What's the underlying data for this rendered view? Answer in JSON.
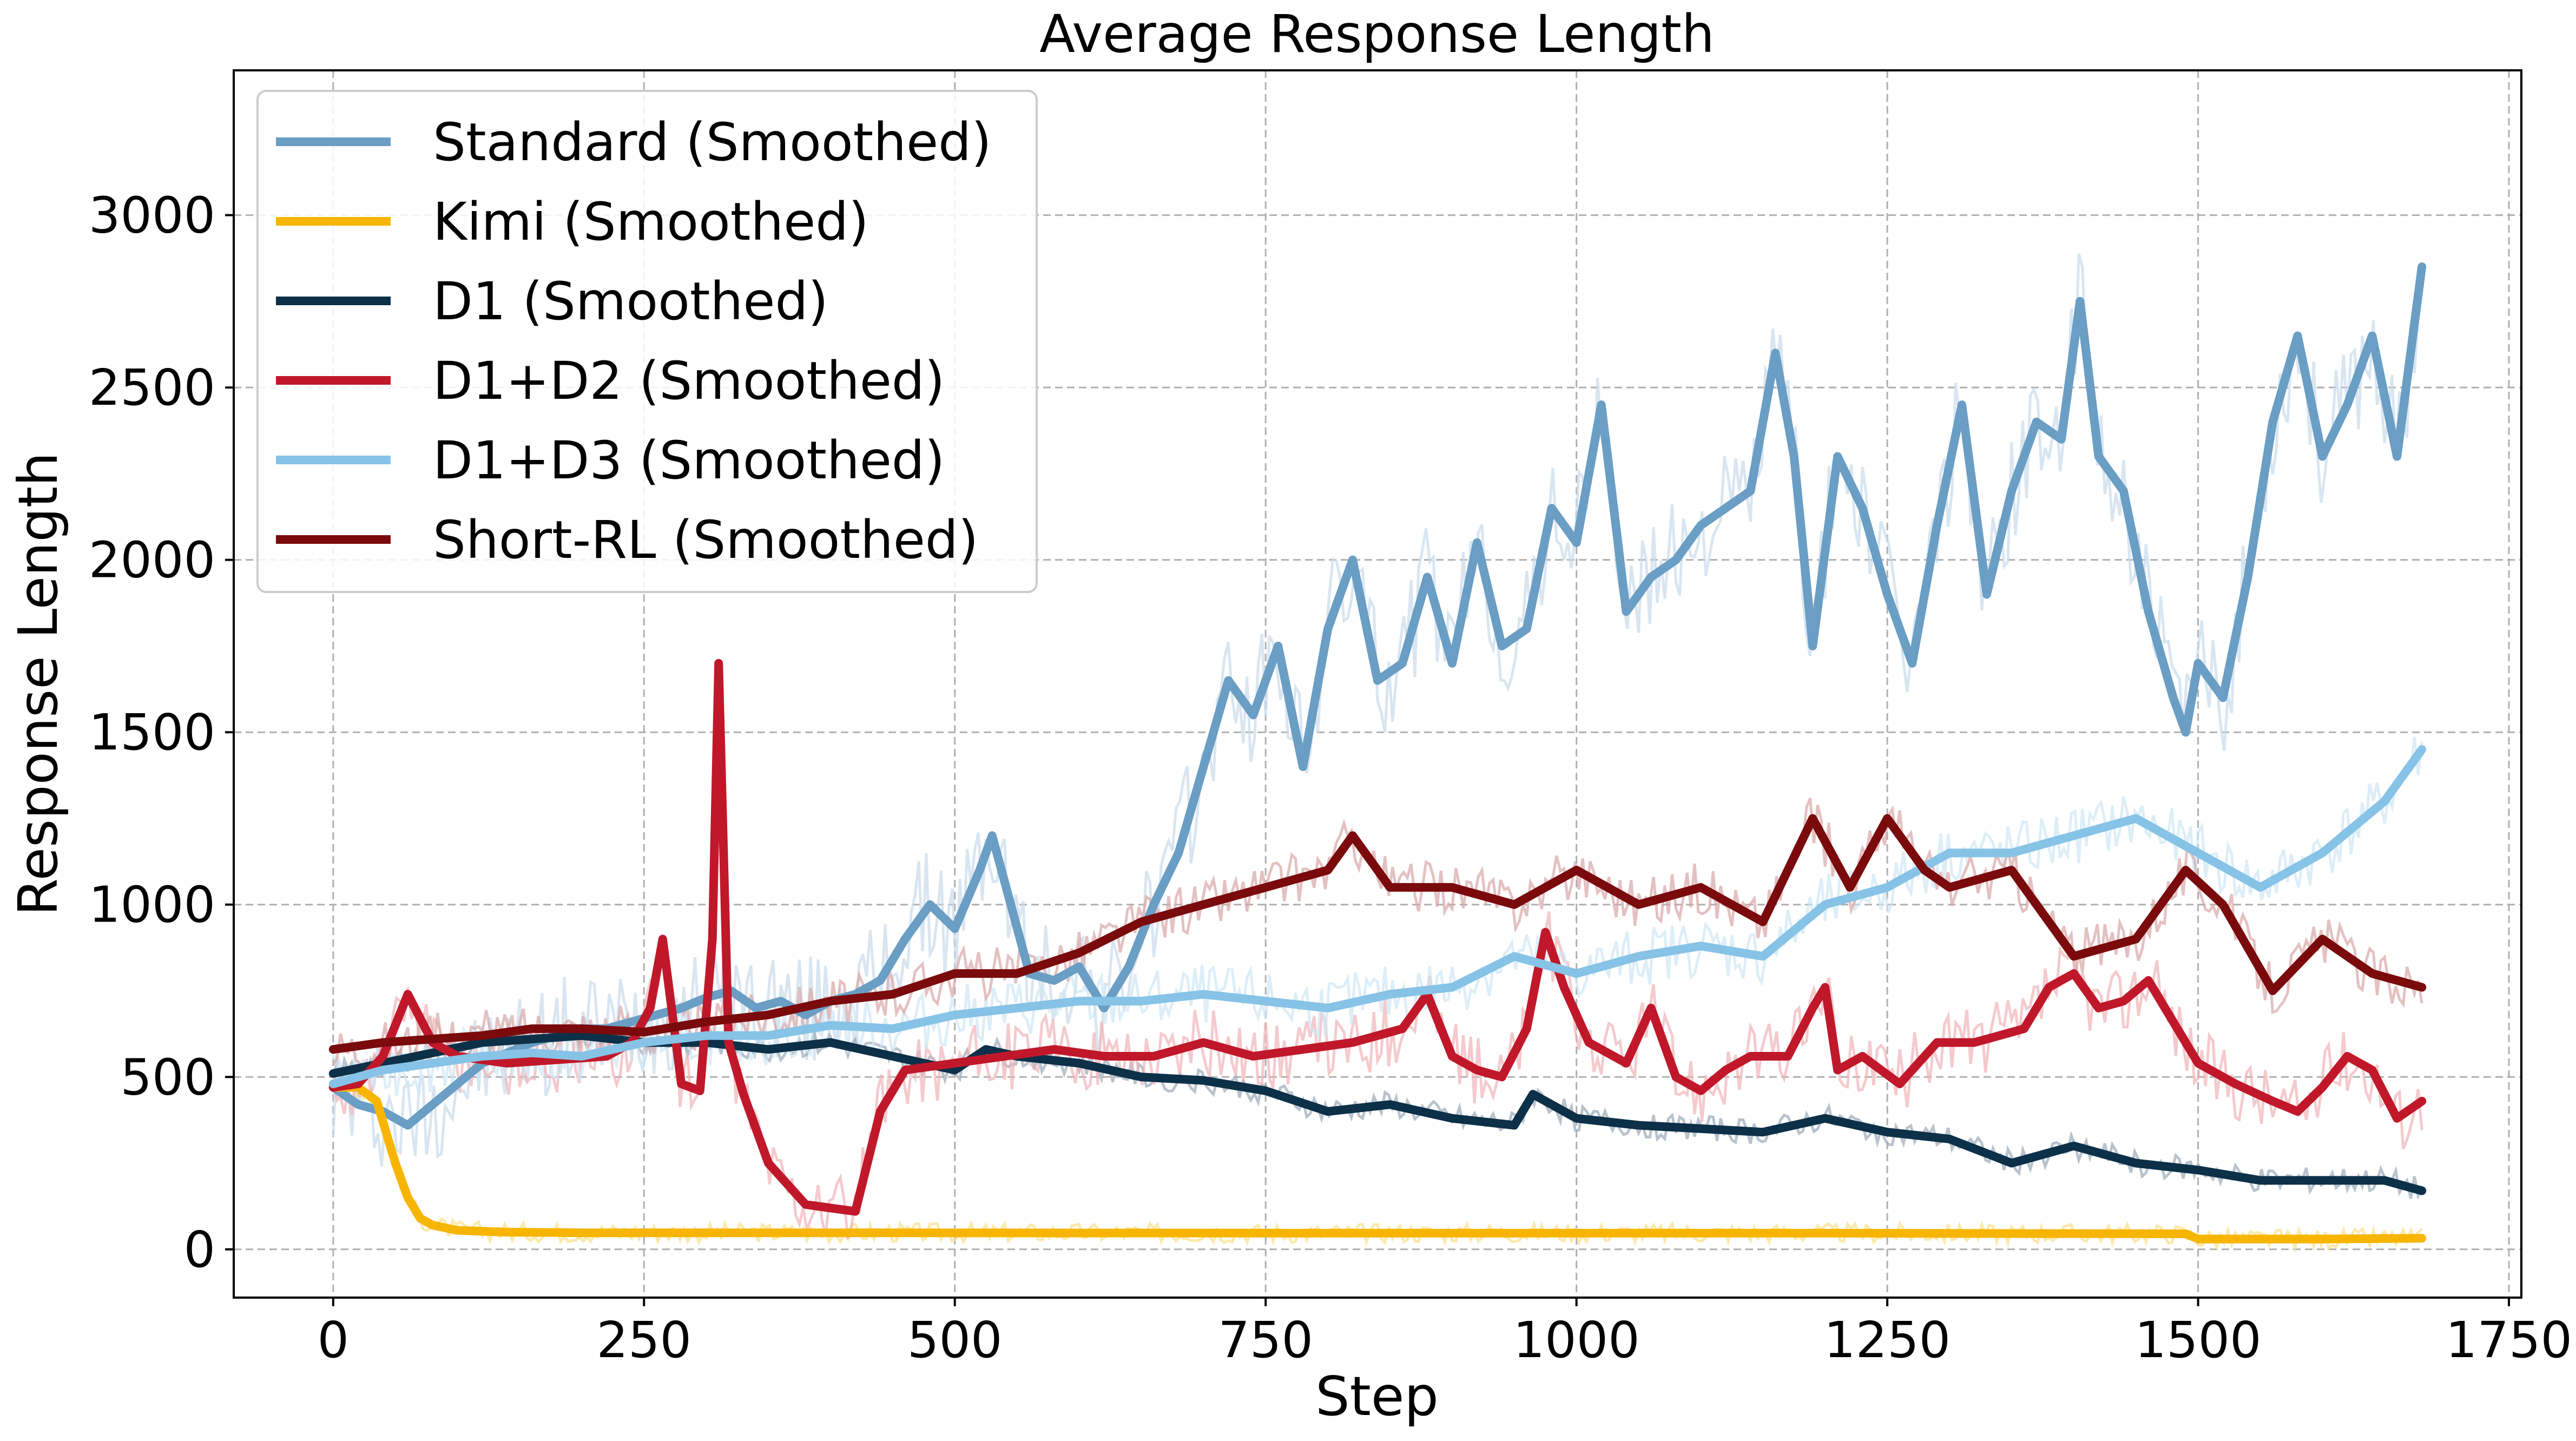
{
  "chart_data": {
    "type": "line",
    "title": "Average Response Length",
    "xlabel": "Step",
    "ylabel": "Response Length",
    "xlim": [
      -80,
      1760
    ],
    "ylim": [
      -140,
      3420
    ],
    "x_ticks": [
      0,
      250,
      500,
      750,
      1000,
      1250,
      1500,
      1750
    ],
    "y_ticks": [
      0,
      500,
      1000,
      1500,
      2000,
      2500,
      3000
    ],
    "grid": true,
    "legend_position": "top-left",
    "series": [
      {
        "name": "Standard (Smoothed)",
        "color": "#6a9ec4",
        "raw_color": "#c9dceb",
        "x": [
          0,
          20,
          40,
          60,
          80,
          100,
          120,
          140,
          160,
          180,
          200,
          220,
          240,
          260,
          280,
          300,
          320,
          340,
          360,
          380,
          400,
          420,
          440,
          460,
          480,
          500,
          520,
          530,
          560,
          580,
          600,
          620,
          640,
          660,
          680,
          700,
          720,
          740,
          760,
          780,
          800,
          820,
          840,
          860,
          880,
          900,
          920,
          940,
          960,
          980,
          1000,
          1020,
          1040,
          1060,
          1080,
          1100,
          1120,
          1140,
          1160,
          1175,
          1190,
          1210,
          1230,
          1250,
          1270,
          1290,
          1310,
          1330,
          1350,
          1370,
          1390,
          1405,
          1420,
          1440,
          1460,
          1480,
          1490,
          1500,
          1520,
          1540,
          1560,
          1580,
          1600,
          1620,
          1640,
          1660,
          1680
        ],
        "values": [
          470,
          420,
          400,
          360,
          420,
          480,
          540,
          570,
          600,
          620,
          640,
          640,
          660,
          680,
          700,
          730,
          750,
          700,
          720,
          680,
          720,
          740,
          780,
          900,
          1000,
          930,
          1100,
          1200,
          800,
          780,
          820,
          700,
          820,
          1000,
          1150,
          1400,
          1650,
          1550,
          1750,
          1400,
          1800,
          2000,
          1650,
          1700,
          1950,
          1700,
          2050,
          1750,
          1800,
          2150,
          2050,
          2450,
          1850,
          1950,
          2000,
          2100,
          2150,
          2200,
          2600,
          2300,
          1750,
          2300,
          2150,
          1900,
          1700,
          2100,
          2450,
          1900,
          2200,
          2400,
          2350,
          2750,
          2300,
          2200,
          1850,
          1600,
          1500,
          1700,
          1600,
          1950,
          2400,
          2650,
          2300,
          2450,
          2650,
          2300,
          2850
        ]
      },
      {
        "name": "Kimi (Smoothed)",
        "color": "#f7b500",
        "raw_color": "#fbe08a",
        "x": [
          0,
          20,
          35,
          50,
          60,
          70,
          80,
          100,
          140,
          200,
          400,
          800,
          1200,
          1490,
          1500,
          1600,
          1680
        ],
        "values": [
          470,
          470,
          430,
          250,
          150,
          90,
          70,
          55,
          50,
          48,
          48,
          47,
          47,
          45,
          30,
          30,
          32
        ]
      },
      {
        "name": "D1 (Smoothed)",
        "color": "#0d3049",
        "raw_color": "#9aaab8",
        "x": [
          0,
          40,
          80,
          120,
          160,
          200,
          250,
          300,
          350,
          400,
          450,
          500,
          525,
          550,
          600,
          650,
          700,
          750,
          800,
          850,
          900,
          950,
          965,
          1000,
          1050,
          1100,
          1150,
          1200,
          1250,
          1300,
          1350,
          1400,
          1450,
          1500,
          1550,
          1600,
          1650,
          1680
        ],
        "values": [
          510,
          540,
          570,
          600,
          610,
          620,
          600,
          600,
          580,
          600,
          560,
          520,
          580,
          560,
          540,
          500,
          490,
          460,
          400,
          420,
          380,
          360,
          450,
          380,
          360,
          350,
          340,
          380,
          340,
          320,
          250,
          300,
          250,
          230,
          200,
          200,
          200,
          170
        ]
      },
      {
        "name": "D1+D2 (Smoothed)",
        "color": "#c0182a",
        "raw_color": "#efb3b8",
        "x": [
          0,
          20,
          40,
          60,
          80,
          100,
          140,
          180,
          220,
          240,
          255,
          265,
          280,
          295,
          305,
          310,
          318,
          330,
          350,
          380,
          400,
          420,
          440,
          460,
          500,
          540,
          580,
          620,
          660,
          700,
          740,
          780,
          820,
          860,
          880,
          900,
          920,
          940,
          960,
          975,
          990,
          1010,
          1040,
          1060,
          1080,
          1100,
          1120,
          1140,
          1170,
          1190,
          1200,
          1210,
          1230,
          1260,
          1290,
          1320,
          1360,
          1380,
          1400,
          1420,
          1440,
          1460,
          1480,
          1500,
          1530,
          1560,
          1580,
          1600,
          1620,
          1640,
          1660,
          1680
        ],
        "values": [
          470,
          480,
          560,
          740,
          600,
          560,
          540,
          550,
          560,
          600,
          700,
          900,
          480,
          460,
          900,
          1700,
          600,
          450,
          250,
          130,
          120,
          110,
          400,
          520,
          540,
          560,
          580,
          560,
          560,
          600,
          560,
          580,
          600,
          640,
          740,
          560,
          520,
          500,
          640,
          920,
          760,
          600,
          540,
          700,
          500,
          460,
          520,
          560,
          560,
          700,
          760,
          520,
          560,
          480,
          600,
          600,
          640,
          760,
          800,
          700,
          720,
          780,
          660,
          540,
          480,
          430,
          400,
          470,
          560,
          520,
          380,
          430
        ]
      },
      {
        "name": "D1+D3 (Smoothed)",
        "color": "#87c3e6",
        "raw_color": "#cfe7f5",
        "x": [
          0,
          40,
          80,
          120,
          160,
          200,
          250,
          300,
          350,
          400,
          450,
          500,
          550,
          600,
          650,
          700,
          750,
          800,
          850,
          900,
          950,
          1000,
          1050,
          1100,
          1150,
          1200,
          1250,
          1300,
          1350,
          1400,
          1450,
          1500,
          1550,
          1600,
          1650,
          1680
        ],
        "values": [
          480,
          520,
          540,
          560,
          570,
          560,
          600,
          620,
          620,
          650,
          640,
          680,
          700,
          720,
          720,
          740,
          720,
          700,
          740,
          760,
          850,
          800,
          850,
          880,
          850,
          1000,
          1050,
          1150,
          1150,
          1200,
          1250,
          1150,
          1050,
          1150,
          1300,
          1450
        ]
      },
      {
        "name": "Short-RL (Smoothed)",
        "color": "#7a0a0c",
        "raw_color": "#d8a6a6",
        "x": [
          0,
          40,
          80,
          120,
          160,
          200,
          250,
          300,
          350,
          400,
          450,
          500,
          550,
          600,
          650,
          700,
          750,
          800,
          820,
          850,
          900,
          950,
          1000,
          1050,
          1100,
          1150,
          1190,
          1220,
          1250,
          1280,
          1300,
          1350,
          1400,
          1450,
          1490,
          1520,
          1560,
          1600,
          1640,
          1680
        ],
        "values": [
          580,
          600,
          610,
          620,
          640,
          640,
          630,
          660,
          680,
          720,
          740,
          800,
          800,
          860,
          950,
          1000,
          1050,
          1100,
          1200,
          1050,
          1050,
          1000,
          1100,
          1000,
          1050,
          950,
          1250,
          1050,
          1250,
          1100,
          1050,
          1100,
          850,
          900,
          1100,
          1000,
          750,
          900,
          800,
          760
        ]
      }
    ]
  }
}
